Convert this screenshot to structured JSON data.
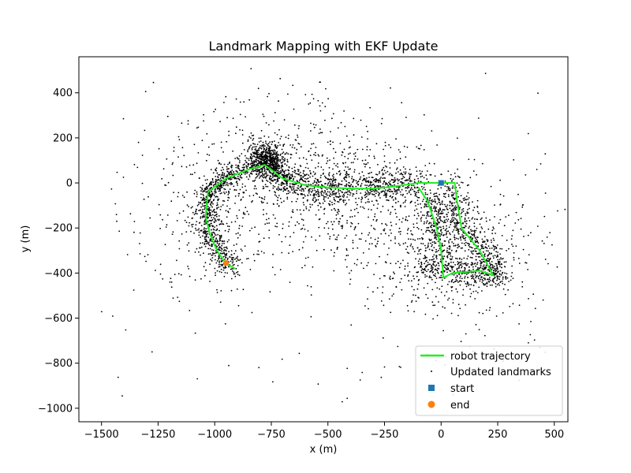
{
  "chart_data": {
    "type": "scatter",
    "title": "Landmark Mapping with EKF Update",
    "xlabel": "x (m)",
    "ylabel": "y (m)",
    "xlim": [
      -1600,
      560
    ],
    "ylim": [
      -1060,
      560
    ],
    "xticks": [
      -1500,
      -1250,
      -1000,
      -750,
      -500,
      -250,
      0,
      250,
      500
    ],
    "yticks": [
      400,
      200,
      0,
      -200,
      -400,
      -600,
      -800,
      -1000
    ],
    "grid": false,
    "legend_position": "bottom-right",
    "trajectory": {
      "name": "robot trajectory",
      "color": "#22ee22",
      "points": [
        [
          0,
          0
        ],
        [
          -100,
          0
        ],
        [
          -200,
          -15
        ],
        [
          -300,
          -25
        ],
        [
          -400,
          -25
        ],
        [
          -500,
          -20
        ],
        [
          -600,
          -10
        ],
        [
          -700,
          20
        ],
        [
          -780,
          80
        ],
        [
          -850,
          60
        ],
        [
          -950,
          20
        ],
        [
          -1030,
          -40
        ],
        [
          -1040,
          -150
        ],
        [
          -1020,
          -230
        ],
        [
          -990,
          -300
        ],
        [
          -950,
          -360
        ],
        [
          -910,
          -380
        ]
      ]
    },
    "trajectory_loop": {
      "points": [
        [
          0,
          0
        ],
        [
          60,
          0
        ],
        [
          70,
          -80
        ],
        [
          90,
          -200
        ],
        [
          170,
          -300
        ],
        [
          230,
          -410
        ],
        [
          170,
          -390
        ],
        [
          50,
          -400
        ],
        [
          10,
          -420
        ],
        [
          0,
          -300
        ],
        [
          -20,
          -200
        ],
        [
          -60,
          -80
        ],
        [
          -100,
          -20
        ]
      ]
    },
    "landmarks": {
      "name": "Updated landmarks",
      "color": "#000000",
      "clusters": [
        {
          "path": [
            [
              -100,
              0
            ],
            [
              -300,
              -30
            ],
            [
              -500,
              -20
            ],
            [
              -700,
              10
            ],
            [
              -780,
              100
            ]
          ],
          "count": 900,
          "spread": 35
        },
        {
          "path": [
            [
              -780,
              100
            ],
            [
              -950,
              20
            ],
            [
              -1040,
              -50
            ]
          ],
          "count": 350,
          "spread": 25
        },
        {
          "path": [
            [
              -1040,
              -50
            ],
            [
              -1020,
              -250
            ],
            [
              -930,
              -380
            ]
          ],
          "count": 450,
          "spread": 28
        },
        {
          "path": [
            [
              -800,
              140
            ],
            [
              -740,
              80
            ]
          ],
          "count": 400,
          "spread": 30
        },
        {
          "path": [
            [
              50,
              0
            ],
            [
              80,
              -200
            ],
            [
              200,
              -320
            ],
            [
              250,
              -420
            ]
          ],
          "count": 450,
          "spread": 35
        },
        {
          "path": [
            [
              250,
              -420
            ],
            [
              100,
              -400
            ],
            [
              -100,
              -380
            ]
          ],
          "count": 300,
          "spread": 30
        },
        {
          "path": [
            [
              -50,
              -50
            ],
            [
              -20,
              -200
            ],
            [
              10,
              -380
            ]
          ],
          "count": 250,
          "spread": 30
        }
      ],
      "diffuse_count": 1600,
      "outlier_count": 140
    },
    "start": {
      "name": "start",
      "x": 0,
      "y": 0,
      "color": "#1f77b4"
    },
    "end": {
      "name": "end",
      "x": -950,
      "y": -355,
      "color": "#ff7f0e"
    }
  }
}
